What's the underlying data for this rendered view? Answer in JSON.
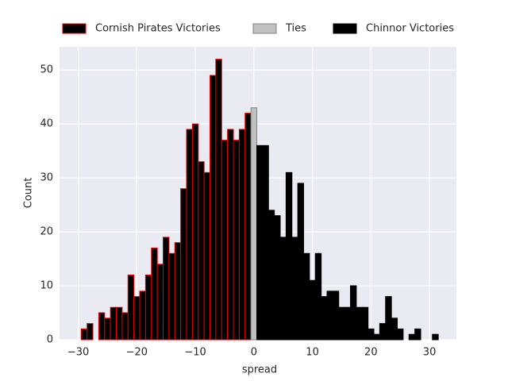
{
  "chart_data": {
    "type": "histogram",
    "xlabel": "spread",
    "ylabel": "Count",
    "xlim": [
      -33.2,
      34.6
    ],
    "ylim": [
      0,
      54.3
    ],
    "xticks": [
      {
        "value": -30,
        "label": "−30"
      },
      {
        "value": -20,
        "label": "−20"
      },
      {
        "value": -10,
        "label": "−10"
      },
      0,
      10,
      20,
      30
    ],
    "yticks": [
      0,
      10,
      20,
      30,
      40,
      50
    ],
    "grid": true,
    "legend": "top",
    "series": [
      {
        "name": "Cornish Pirates Victories",
        "color": "#000000",
        "edgecolor": "#e00000",
        "bins": [
          -29.5,
          -28.5,
          -27.5,
          -26.5,
          -25.5,
          -24.5,
          -23.5,
          -22.5,
          -21.5,
          -20.5,
          -19.5,
          -18.5,
          -17.5,
          -16.5,
          -15.5,
          -14.5,
          -13.5,
          -12.5,
          -11.5,
          -10.5,
          -9.5,
          -8.5,
          -7.5,
          -6.5,
          -5.5,
          -4.5,
          -3.5,
          -2.5,
          -1.5,
          -0.5
        ],
        "values": [
          2,
          3,
          0,
          5,
          4,
          6,
          6,
          5,
          12,
          8,
          9,
          12,
          17,
          14,
          19,
          16,
          18,
          28,
          39,
          40,
          33,
          31,
          49,
          52,
          37,
          39,
          37,
          39,
          42
        ]
      },
      {
        "name": "Ties",
        "color": "#c0c0c0",
        "edgecolor": "#808080",
        "bins": [
          -0.5,
          0.5
        ],
        "values": [
          43
        ]
      },
      {
        "name": "Chinnor Victories",
        "color": "#000000",
        "edgecolor": "#000000",
        "bins": [
          0.5,
          1.5,
          2.5,
          3.5,
          4.5,
          5.5,
          6.5,
          7.5,
          8.5,
          9.5,
          10.5,
          11.5,
          12.5,
          13.5,
          14.5,
          15.5,
          16.5,
          17.5,
          18.5,
          19.5,
          20.5,
          21.5,
          22.5,
          23.5,
          24.5,
          25.5,
          26.5,
          27.5,
          28.5,
          29.5,
          30.5,
          31.5
        ],
        "values": [
          36,
          36,
          24,
          23,
          19,
          31,
          19,
          29,
          16,
          11,
          16,
          8,
          9,
          9,
          6,
          6,
          10,
          6,
          6,
          2,
          1,
          3,
          8,
          4,
          2,
          0,
          1,
          2,
          0,
          0,
          1
        ]
      }
    ]
  }
}
